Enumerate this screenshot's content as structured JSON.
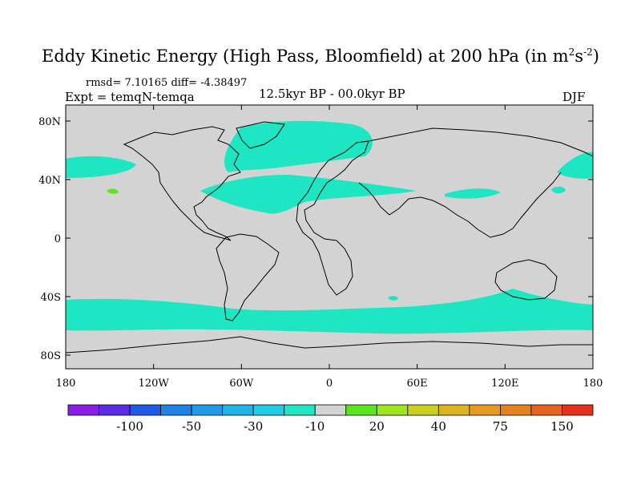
{
  "title": {
    "text": "Eddy Kinetic Energy (High Pass, Bloomfield) at 200 hPa (in m",
    "sup1": "2",
    "mid": "s",
    "sup2": "-2",
    "end": ")"
  },
  "stats": "rmsd= 7.10165 diff= -4.38497",
  "experiment": "Expt = temqN-temqa",
  "period": "12.5kyr BP - 00.0kyr BP",
  "season": "DJF",
  "map": {
    "lat_ticks": [
      "80N",
      "40N",
      "0",
      "40S",
      "80S"
    ],
    "lon_ticks": [
      "180",
      "120W",
      "60W",
      "0",
      "60E",
      "120E",
      "180"
    ],
    "background_color": "#d3d3d3",
    "anomaly_color": "#1ee6c3"
  },
  "colorbar": {
    "colors": [
      "#8a1ee6",
      "#5a2de6",
      "#1e5ae6",
      "#1e82e6",
      "#1e9be6",
      "#1eb4e6",
      "#1ecde6",
      "#1ee6c3",
      "#d3d3d3",
      "#5ae61e",
      "#a0e61e",
      "#c8d21e",
      "#dcb41e",
      "#e69b1e",
      "#e6821e",
      "#e6641e",
      "#e6321e"
    ],
    "labels": [
      "-100",
      "-50",
      "-30",
      "-10",
      "20",
      "40",
      "75",
      "150"
    ]
  }
}
